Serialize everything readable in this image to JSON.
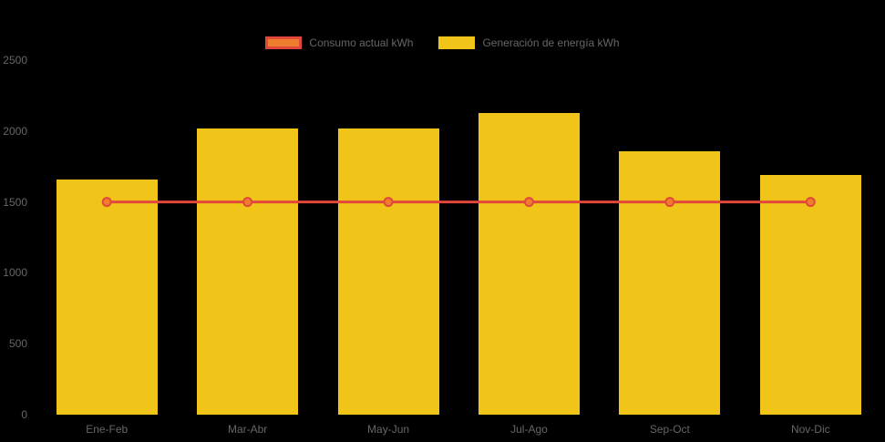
{
  "colors": {
    "background": "#000000",
    "text": "#666666",
    "bar_fill": "#f0c419",
    "line_stroke": "#e2473b",
    "point_fill": "#ee7e2e"
  },
  "legend": {
    "items": [
      {
        "label": "Consumo actual kWh",
        "swatch_fill": "#ee7e2e",
        "swatch_border": "#e2473b"
      },
      {
        "label": "Generación de energía kWh",
        "swatch_fill": "#f0c419",
        "swatch_border": "#f0c419"
      }
    ]
  },
  "chart_data": {
    "type": "bar",
    "categories": [
      "Ene-Feb",
      "Mar-Abr",
      "May-Jun",
      "Jul-Ago",
      "Sep-Oct",
      "Nov-Dic"
    ],
    "series": [
      {
        "name": "Consumo actual kWh",
        "type": "line",
        "values": [
          1500,
          1500,
          1500,
          1500,
          1500,
          1500
        ],
        "line_color": "#e2473b",
        "point_fill": "#ee7e2e"
      },
      {
        "name": "Generación de energía kWh",
        "type": "bar",
        "values": [
          1655,
          2020,
          2015,
          2130,
          1855,
          1690
        ],
        "fill_color": "#f0c419"
      }
    ],
    "title": "",
    "xlabel": "",
    "ylabel": "",
    "ylim": [
      0,
      2500
    ],
    "yticks": [
      0,
      500,
      1000,
      1500,
      2000,
      2500
    ],
    "grid": false,
    "legend_position": "top"
  }
}
